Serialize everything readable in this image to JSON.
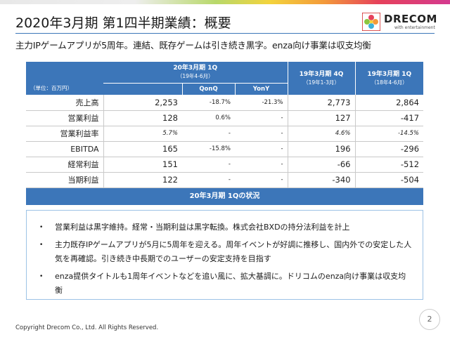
{
  "slide": {
    "title": "2020年3月期 第1四半期業績：概要",
    "subtitle": "主力IPゲームアプリが5周年。連結、既存ゲームは引き続き黒字。enza向け事業は収支均衡",
    "logo_text": "DRECOM",
    "logo_tagline": "with entertainment",
    "page_number": "2",
    "copyright": "Copyright Drecom Co., Ltd. All Rights Reserved."
  },
  "table": {
    "unit_label": "（単位：百万円）",
    "col_current": "20年3月期 1Q",
    "col_current_sub": "（19年4-6月）",
    "col_qonq": "QonQ",
    "col_yony": "YonY",
    "col_prev_q": "19年3月期 4Q",
    "col_prev_q_sub": "（19年1-3月）",
    "col_prev_y": "19年3月期 1Q",
    "col_prev_y_sub": "（18年4-6月）",
    "rows": [
      {
        "label": "売上高",
        "current": "2,253",
        "qonq": "-18.7%",
        "yony": "-21.3%",
        "prev_q": "2,773",
        "prev_y": "2,864"
      },
      {
        "label": "営業利益",
        "current": "128",
        "qonq": "0.6%",
        "yony": "-",
        "prev_q": "127",
        "prev_y": "-417"
      },
      {
        "label": "営業利益率",
        "current": "5.7%",
        "qonq": "-",
        "yony": "-",
        "prev_q": "4.6%",
        "prev_y": "-14.5%"
      },
      {
        "label": "EBITDA",
        "current": "165",
        "qonq": "-15.8%",
        "yony": "-",
        "prev_q": "196",
        "prev_y": "-296"
      },
      {
        "label": "経常利益",
        "current": "151",
        "qonq": "-",
        "yony": "-",
        "prev_q": "-66",
        "prev_y": "-512"
      },
      {
        "label": "当期利益",
        "current": "122",
        "qonq": "-",
        "yony": "-",
        "prev_q": "-340",
        "prev_y": "-504"
      }
    ]
  },
  "status": {
    "heading": "20年3月期 1Qの状況",
    "bullets": [
      "営業利益は黒字維持。経常・当期利益は黒字転換。株式会社BXDの持分法利益を計上",
      "主力既存IPゲームアプリが5月に5周年を迎える。周年イベントが好調に推移し、国内外での安定した人気を再確認。引き続き中長期でのユーザーの安定支持を目指す",
      "enza提供タイトルも1周年イベントなどを追い風に、拡大基調に。ドリコムのenza向け事業は収支均衡"
    ]
  }
}
